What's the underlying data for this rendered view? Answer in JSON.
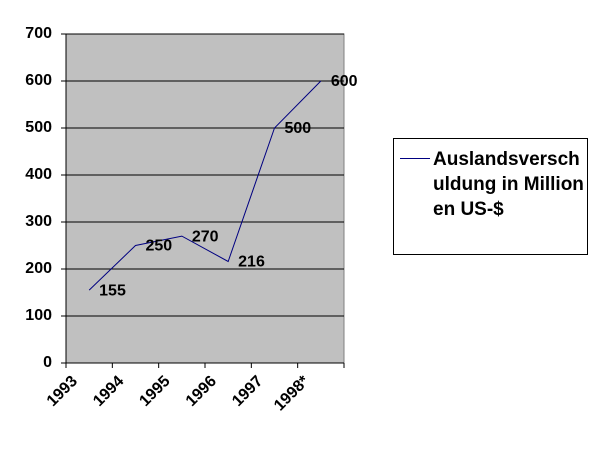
{
  "chart_data": {
    "type": "line",
    "categories": [
      "1993",
      "1994",
      "1995",
      "1996",
      "1997",
      "1998*"
    ],
    "series": [
      {
        "name": "Auslandsverschuldung in Millionen US-$",
        "color": "#000080",
        "values": [
          155,
          250,
          270,
          216,
          500,
          600
        ]
      }
    ],
    "ylim": [
      0,
      700
    ],
    "yticks": [
      0,
      100,
      200,
      300,
      400,
      500,
      600,
      700
    ],
    "grid": true,
    "legend": "right"
  }
}
